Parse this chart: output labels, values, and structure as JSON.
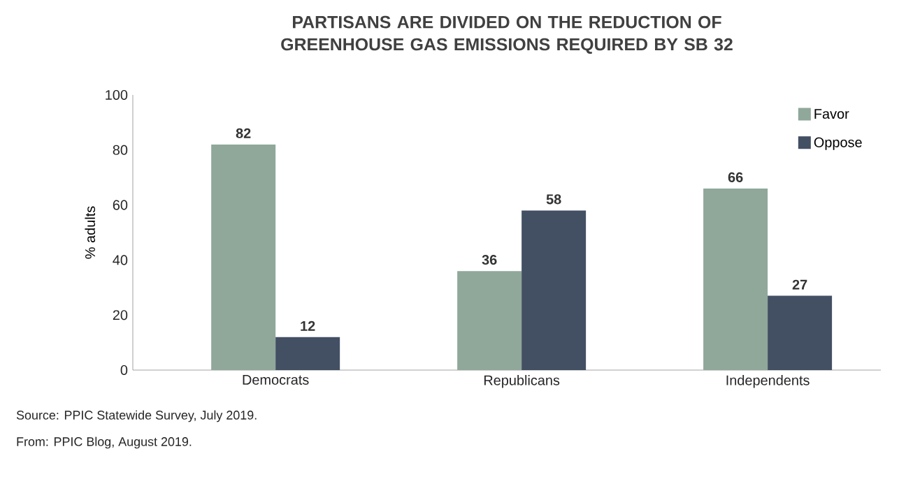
{
  "chart_data": {
    "type": "bar",
    "title": "PARTISANS ARE DIVIDED ON THE REDUCTION OF GREENHOUSE GAS EMISSIONS REQUIRED BY SB 32",
    "ylabel": "% adults",
    "categories": [
      "Democrats",
      "Republicans",
      "Independents"
    ],
    "series": [
      {
        "name": "Favor",
        "color": "#8fa89a",
        "values": [
          82,
          36,
          66
        ]
      },
      {
        "name": "Oppose",
        "color": "#434f63",
        "values": [
          12,
          58,
          27
        ]
      }
    ],
    "ylim": [
      0,
      100
    ],
    "yticks": [
      0,
      20,
      40,
      60,
      80,
      100
    ],
    "data_labels": true,
    "legend": "top right",
    "annotations": [
      "Source: PPIC Statewide Survey, July 2019.",
      "From: PPIC Blog, August 2019."
    ]
  }
}
